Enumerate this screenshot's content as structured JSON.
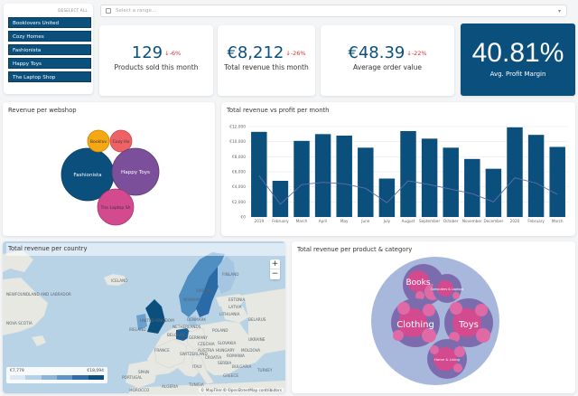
{
  "shops": {
    "deselect_label": "DESELECT ALL",
    "items": [
      "Booklovers United",
      "Cozy Homes",
      "Fashionista",
      "Happy Toys",
      "The Laptop Shop"
    ]
  },
  "date_range": {
    "placeholder": "Select a range..."
  },
  "kpis": [
    {
      "value": "129",
      "delta": "-6%",
      "label": "Products sold this month"
    },
    {
      "value": "€8,212",
      "delta": "-26%",
      "label": "Total revenue this month"
    },
    {
      "value": "€48.39",
      "delta": "-22%",
      "label": "Average order value"
    }
  ],
  "profit_margin": {
    "value": "40.81%",
    "label": "Avg. Profit Margin"
  },
  "revenue_per_webshop": {
    "title": "Revenue per webshop",
    "bubbles": [
      "Booklov",
      "Cozy Ho",
      "Fashionista",
      "Happy Toys",
      "The Laptop Sh"
    ]
  },
  "chart_data": {
    "type": "bar",
    "title": "Total revenue vs profit per month",
    "categories": [
      "2019",
      "February",
      "March",
      "April",
      "May",
      "June",
      "July",
      "August",
      "September",
      "October",
      "November",
      "December",
      "2020",
      "February",
      "March"
    ],
    "series": [
      {
        "type": "bar",
        "values": [
          11300,
          4800,
          10100,
          11000,
          10800,
          9200,
          5100,
          11400,
          10400,
          9200,
          7700,
          6400,
          11900,
          10900,
          9300
        ]
      },
      {
        "type": "line",
        "values": [
          5500,
          1700,
          4300,
          4600,
          4400,
          3800,
          1900,
          4800,
          4300,
          3700,
          3100,
          2000,
          5200,
          4500,
          3000
        ]
      }
    ],
    "y_ticks": [
      "€0",
      "€2,000",
      "€4,000",
      "€6,000",
      "€8,000",
      "€10,000",
      "€12,000"
    ],
    "ylim": [
      0,
      12000
    ],
    "bar_color": "#0b4f7c",
    "line_color": "#5f6fa8"
  },
  "country_map": {
    "title": "Total revenue per country",
    "zoom_in": "+",
    "zoom_out": "−",
    "legend_min": "€7,779",
    "legend_max": "€18,094",
    "attribution": "© MapTiler © OpenStreetMap contributors",
    "labels": [
      "ICELAND",
      "SWEDEN",
      "FINLAND",
      "NORWAY",
      "ESTONIA",
      "LATVIA",
      "LITHUANIA",
      "BELARUS",
      "DENMARK",
      "UNITED KINGDOM",
      "IRELAND",
      "NETHERLANDS",
      "BELGIUM",
      "POLAND",
      "GERMANY",
      "UKRAINE",
      "CZECHIA",
      "SLOVAKIA",
      "AUSTRIA",
      "HUNGARY",
      "MOLDOVA",
      "SWITZERLAND",
      "ROMANIA",
      "FRANCE",
      "CROATIA",
      "SERBIA",
      "ITALY",
      "BULGARIA",
      "SPAIN",
      "PORTUGAL",
      "GREECE",
      "TURKEY",
      "NEWFOUNDLAND AND LABRADOR",
      "NOVA SCOTIA",
      "ALGERIA",
      "TUNISIA",
      "MOROCCO",
      "LIBYA",
      "EGYPT"
    ]
  },
  "category_revenue": {
    "title": "Total revenue per product & category",
    "categories": [
      "Books",
      "Clothing",
      "Toys",
      "Computers & Laptops",
      "Home & Living"
    ]
  }
}
